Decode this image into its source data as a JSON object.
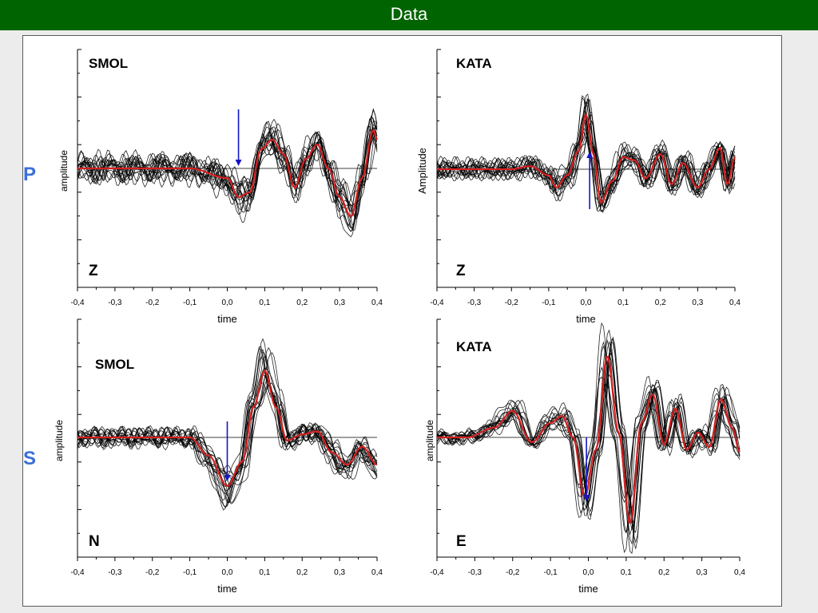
{
  "header": {
    "title": "Data"
  },
  "rows": [
    {
      "label": "P"
    },
    {
      "label": "S"
    }
  ],
  "colors": {
    "header_bg": "#006400",
    "row_label": "#3b6fd8",
    "traces": "#000000",
    "stack": "#d42020",
    "arrow": "#1515c8"
  },
  "chart_data": [
    {
      "type": "line",
      "title": "SMOL",
      "component": "Z",
      "xlabel": "time",
      "ylabel": "amplitude",
      "xlim": [
        -0.4,
        0.4
      ],
      "xticks": [
        "-0,4",
        "-0,3",
        "-0,2",
        "-0,1",
        "0,0",
        "0,1",
        "0,2",
        "0,3",
        "0,4"
      ],
      "onset_arrow": {
        "x": 0.03,
        "direction": "down"
      },
      "series": [
        {
          "role": "individual traces",
          "count": 18,
          "color": "#000000"
        },
        {
          "role": "stack",
          "color": "#d42020",
          "x": [
            -0.4,
            -0.3,
            -0.2,
            -0.1,
            0.0,
            0.03,
            0.06,
            0.09,
            0.12,
            0.15,
            0.18,
            0.21,
            0.24,
            0.27,
            0.3,
            0.33,
            0.36,
            0.39,
            0.4
          ],
          "y": [
            0.0,
            0.0,
            0.0,
            0.0,
            -0.2,
            -0.6,
            -0.5,
            0.4,
            0.6,
            0.3,
            -0.4,
            0.2,
            0.5,
            0.0,
            -0.6,
            -1.0,
            -0.2,
            0.8,
            0.6
          ]
        }
      ]
    },
    {
      "type": "line",
      "title": "KATA",
      "component": "Z",
      "xlabel": "time",
      "ylabel": "Amplitude",
      "xlim": [
        -0.4,
        0.4
      ],
      "xticks": [
        "-0,4",
        "-0,3",
        "-0,2",
        "-0,1",
        "0,0",
        "0,1",
        "0,2",
        "0,3",
        "0,4"
      ],
      "onset_arrow": {
        "x": 0.01,
        "direction": "up"
      },
      "series": [
        {
          "role": "individual traces",
          "count": 18,
          "color": "#000000"
        },
        {
          "role": "stack",
          "color": "#d42020",
          "x": [
            -0.4,
            -0.2,
            -0.15,
            -0.1,
            -0.08,
            -0.05,
            -0.02,
            0.0,
            0.02,
            0.04,
            0.07,
            0.1,
            0.13,
            0.16,
            0.2,
            0.23,
            0.26,
            0.3,
            0.33,
            0.36,
            0.38,
            0.4
          ],
          "y": [
            0.0,
            0.0,
            0.1,
            -0.2,
            -0.6,
            -0.2,
            0.6,
            1.8,
            0.5,
            -1.1,
            -0.4,
            0.4,
            0.3,
            -0.3,
            0.5,
            -0.5,
            0.2,
            -0.6,
            0.0,
            0.7,
            -0.5,
            0.4
          ]
        }
      ]
    },
    {
      "type": "line",
      "title": "SMOL",
      "component": "N",
      "xlabel": "time",
      "ylabel": "amplitude",
      "xlim": [
        -0.4,
        0.4
      ],
      "xticks": [
        "-0,4",
        "-0,3",
        "-0,2",
        "-0,1",
        "0,0",
        "0,1",
        "0,2",
        "0,3",
        "0,4"
      ],
      "onset_arrow": {
        "x": 0.0,
        "direction": "down"
      },
      "series": [
        {
          "role": "individual traces",
          "count": 18,
          "color": "#000000"
        },
        {
          "role": "stack",
          "color": "#d42020",
          "x": [
            -0.4,
            -0.3,
            -0.2,
            -0.1,
            -0.05,
            0.0,
            0.04,
            0.07,
            0.1,
            0.13,
            0.16,
            0.2,
            0.24,
            0.28,
            0.32,
            0.36,
            0.4
          ],
          "y": [
            0.0,
            0.0,
            0.0,
            0.0,
            -0.6,
            -1.6,
            -0.8,
            1.0,
            2.2,
            1.0,
            -0.1,
            0.1,
            0.2,
            -0.5,
            -0.9,
            -0.3,
            -0.9
          ]
        }
      ]
    },
    {
      "type": "line",
      "title": "KATA",
      "component": "E",
      "xlabel": "time",
      "ylabel": "amplitude",
      "xlim": [
        -0.4,
        0.4
      ],
      "xticks": [
        "-0,4",
        "-0,3",
        "-0,2",
        "-0,1",
        "0,0",
        "0,1",
        "0,2",
        "0,3",
        "0,4"
      ],
      "onset_arrow": {
        "x": -0.005,
        "direction": "down"
      },
      "series": [
        {
          "role": "individual traces",
          "count": 16,
          "color": "#000000"
        },
        {
          "role": "stack",
          "color": "#d42020",
          "x": [
            -0.4,
            -0.32,
            -0.25,
            -0.2,
            -0.15,
            -0.1,
            -0.07,
            -0.04,
            -0.01,
            0.02,
            0.05,
            0.08,
            0.11,
            0.14,
            0.17,
            0.2,
            0.23,
            0.26,
            0.29,
            0.32,
            0.35,
            0.38,
            0.4
          ],
          "y": [
            0.0,
            0.0,
            0.4,
            1.1,
            -0.2,
            0.6,
            0.9,
            0.0,
            -2.5,
            -0.5,
            3.4,
            0.2,
            -3.6,
            0.6,
            1.8,
            -0.3,
            1.2,
            -0.5,
            0.2,
            -0.4,
            1.6,
            0.4,
            -0.6
          ]
        }
      ]
    }
  ]
}
